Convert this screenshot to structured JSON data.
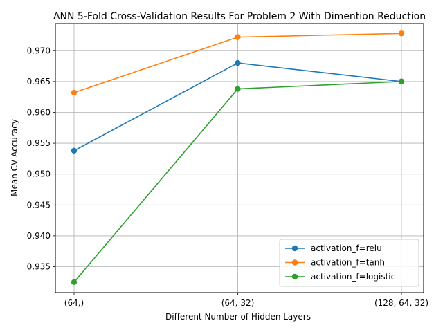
{
  "chart_data": {
    "type": "line",
    "title": "ANN 5-Fold Cross-Validation Results For Problem 2 With Dimention Reduction",
    "xlabel": "Different Number of Hidden Layers",
    "ylabel": "Mean CV Accuracy",
    "categories": [
      "(64,)",
      "(64, 32)",
      "(128, 64, 32)"
    ],
    "yticks": [
      0.935,
      0.94,
      0.945,
      0.95,
      0.955,
      0.96,
      0.965,
      0.97
    ],
    "ytick_labels": [
      "0.935",
      "0.940",
      "0.945",
      "0.950",
      "0.955",
      "0.960",
      "0.965",
      "0.970"
    ],
    "ylim": [
      0.9308,
      0.9744
    ],
    "grid": true,
    "legend_position": "lower right",
    "series": [
      {
        "name": "activation_f=relu",
        "color": "#1f77b4",
        "values": [
          0.9538,
          0.968,
          0.965
        ]
      },
      {
        "name": "activation_f=tanh",
        "color": "#ff7f0e",
        "values": [
          0.9632,
          0.9722,
          0.9728
        ]
      },
      {
        "name": "activation_f=logistic",
        "color": "#2ca02c",
        "values": [
          0.9325,
          0.9638,
          0.965
        ]
      }
    ]
  }
}
